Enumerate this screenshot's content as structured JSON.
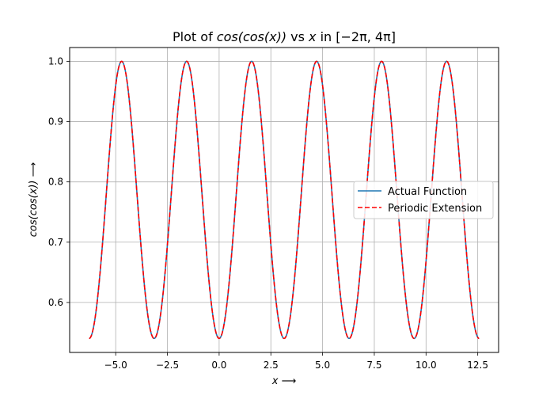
{
  "chart_data": {
    "type": "line",
    "title": "Plot of cos(cos(x)) vs x in [−2π, 4π]",
    "title_parts": {
      "prefix": "Plot of ",
      "function": "cos(cos(x))",
      "middle": " vs ",
      "variable": "x",
      "suffix": " in [−2π, 4π]"
    },
    "xlabel": "x ⟶",
    "ylabel": "cos(cos(x)) ⟶",
    "xlim": [
      -7.226,
      13.508
    ],
    "ylim": [
      0.5171,
      1.0229
    ],
    "domain": [
      -6.2832,
      12.5664
    ],
    "grid": true,
    "legend_position": "center-right",
    "x_ticks": [
      {
        "value": -5.0,
        "label": "−5.0"
      },
      {
        "value": -2.5,
        "label": "−2.5"
      },
      {
        "value": 0.0,
        "label": "0.0"
      },
      {
        "value": 2.5,
        "label": "2.5"
      },
      {
        "value": 5.0,
        "label": "5.0"
      },
      {
        "value": 7.5,
        "label": "7.5"
      },
      {
        "value": 10.0,
        "label": "10.0"
      },
      {
        "value": 12.5,
        "label": "12.5"
      }
    ],
    "y_ticks": [
      {
        "value": 0.6,
        "label": "0.6"
      },
      {
        "value": 0.7,
        "label": "0.7"
      },
      {
        "value": 0.8,
        "label": "0.8"
      },
      {
        "value": 0.9,
        "label": "0.9"
      },
      {
        "value": 1.0,
        "label": "1.0"
      }
    ],
    "series": [
      {
        "name": "Actual Function",
        "color": "#1f77b4",
        "style": "solid",
        "function": "cos(cos(x))"
      },
      {
        "name": "Periodic Extension",
        "color": "#ff0000",
        "style": "dashed",
        "function": "cos(cos(x))"
      }
    ],
    "key_points": {
      "x": [
        -6.2832,
        -4.7124,
        -3.1416,
        -1.5708,
        0,
        1.5708,
        3.1416,
        4.7124,
        6.2832,
        7.854,
        9.4248,
        10.9956,
        12.5664
      ],
      "y": [
        0.5403,
        1.0,
        0.5403,
        1.0,
        0.5403,
        1.0,
        0.5403,
        1.0,
        0.5403,
        1.0,
        0.5403,
        1.0,
        0.5403
      ]
    }
  }
}
